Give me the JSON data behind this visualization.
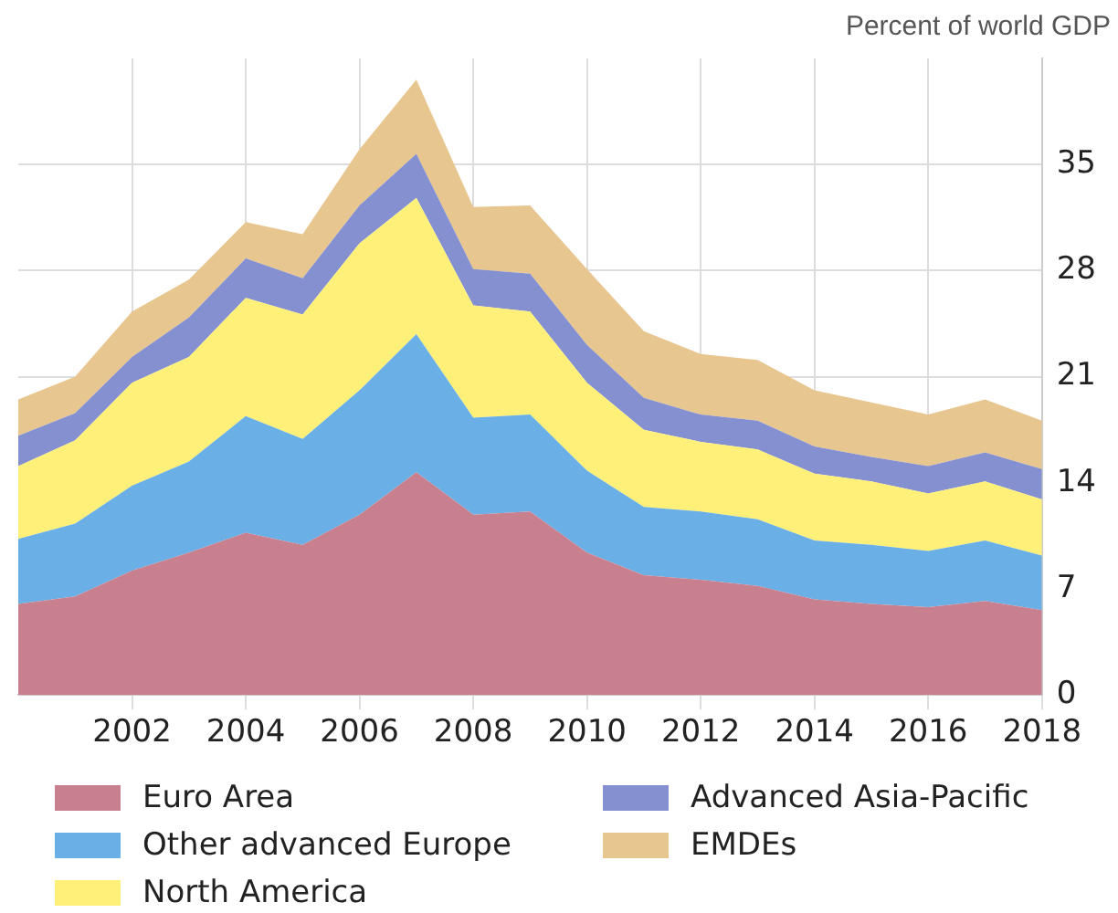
{
  "chart_data": {
    "type": "area",
    "stacked": true,
    "ylabel": "Percent of world GDP",
    "x": [
      2000,
      2001,
      2002,
      2003,
      2004,
      2005,
      2006,
      2007,
      2008,
      2009,
      2010,
      2011,
      2012,
      2013,
      2014,
      2015,
      2016,
      2017,
      2018
    ],
    "xlim": [
      2000,
      2018
    ],
    "xticks": [
      2002,
      2004,
      2006,
      2008,
      2010,
      2012,
      2014,
      2016,
      2018
    ],
    "ylim": [
      0,
      42
    ],
    "yticks": [
      0,
      7,
      14,
      21,
      28,
      35
    ],
    "grid": true,
    "legend": "bottom",
    "series": [
      {
        "name": "Euro Area",
        "color": "#c8808f",
        "values": [
          6.0,
          6.5,
          8.2,
          9.4,
          10.7,
          9.9,
          11.9,
          14.7,
          11.9,
          12.1,
          9.4,
          7.9,
          7.6,
          7.2,
          6.3,
          6.0,
          5.8,
          6.2,
          5.6
        ]
      },
      {
        "name": "Other advanced Europe",
        "color": "#6aafe6",
        "values": [
          4.3,
          4.8,
          5.6,
          6.0,
          7.7,
          7.0,
          8.2,
          9.1,
          6.4,
          6.4,
          5.4,
          4.5,
          4.5,
          4.4,
          3.9,
          3.9,
          3.7,
          4.0,
          3.6
        ]
      },
      {
        "name": "North America",
        "color": "#fff07a",
        "values": [
          4.8,
          5.5,
          6.8,
          6.9,
          7.8,
          8.2,
          9.7,
          9.0,
          7.4,
          6.8,
          5.8,
          5.1,
          4.6,
          4.6,
          4.4,
          4.2,
          3.8,
          3.9,
          3.7
        ]
      },
      {
        "name": "Advanced Asia-Pacific",
        "color": "#8490d0",
        "values": [
          2.0,
          1.8,
          1.7,
          2.6,
          2.6,
          2.4,
          2.5,
          2.9,
          2.4,
          2.5,
          2.5,
          2.1,
          1.8,
          1.9,
          1.8,
          1.6,
          1.8,
          1.9,
          2.0
        ]
      },
      {
        "name": "EMDEs",
        "color": "#e8c690",
        "values": [
          2.4,
          2.4,
          3.0,
          2.5,
          2.4,
          2.9,
          3.7,
          4.9,
          4.1,
          4.5,
          5.0,
          4.4,
          4.0,
          4.0,
          3.7,
          3.6,
          3.4,
          3.5,
          3.2
        ]
      }
    ]
  }
}
